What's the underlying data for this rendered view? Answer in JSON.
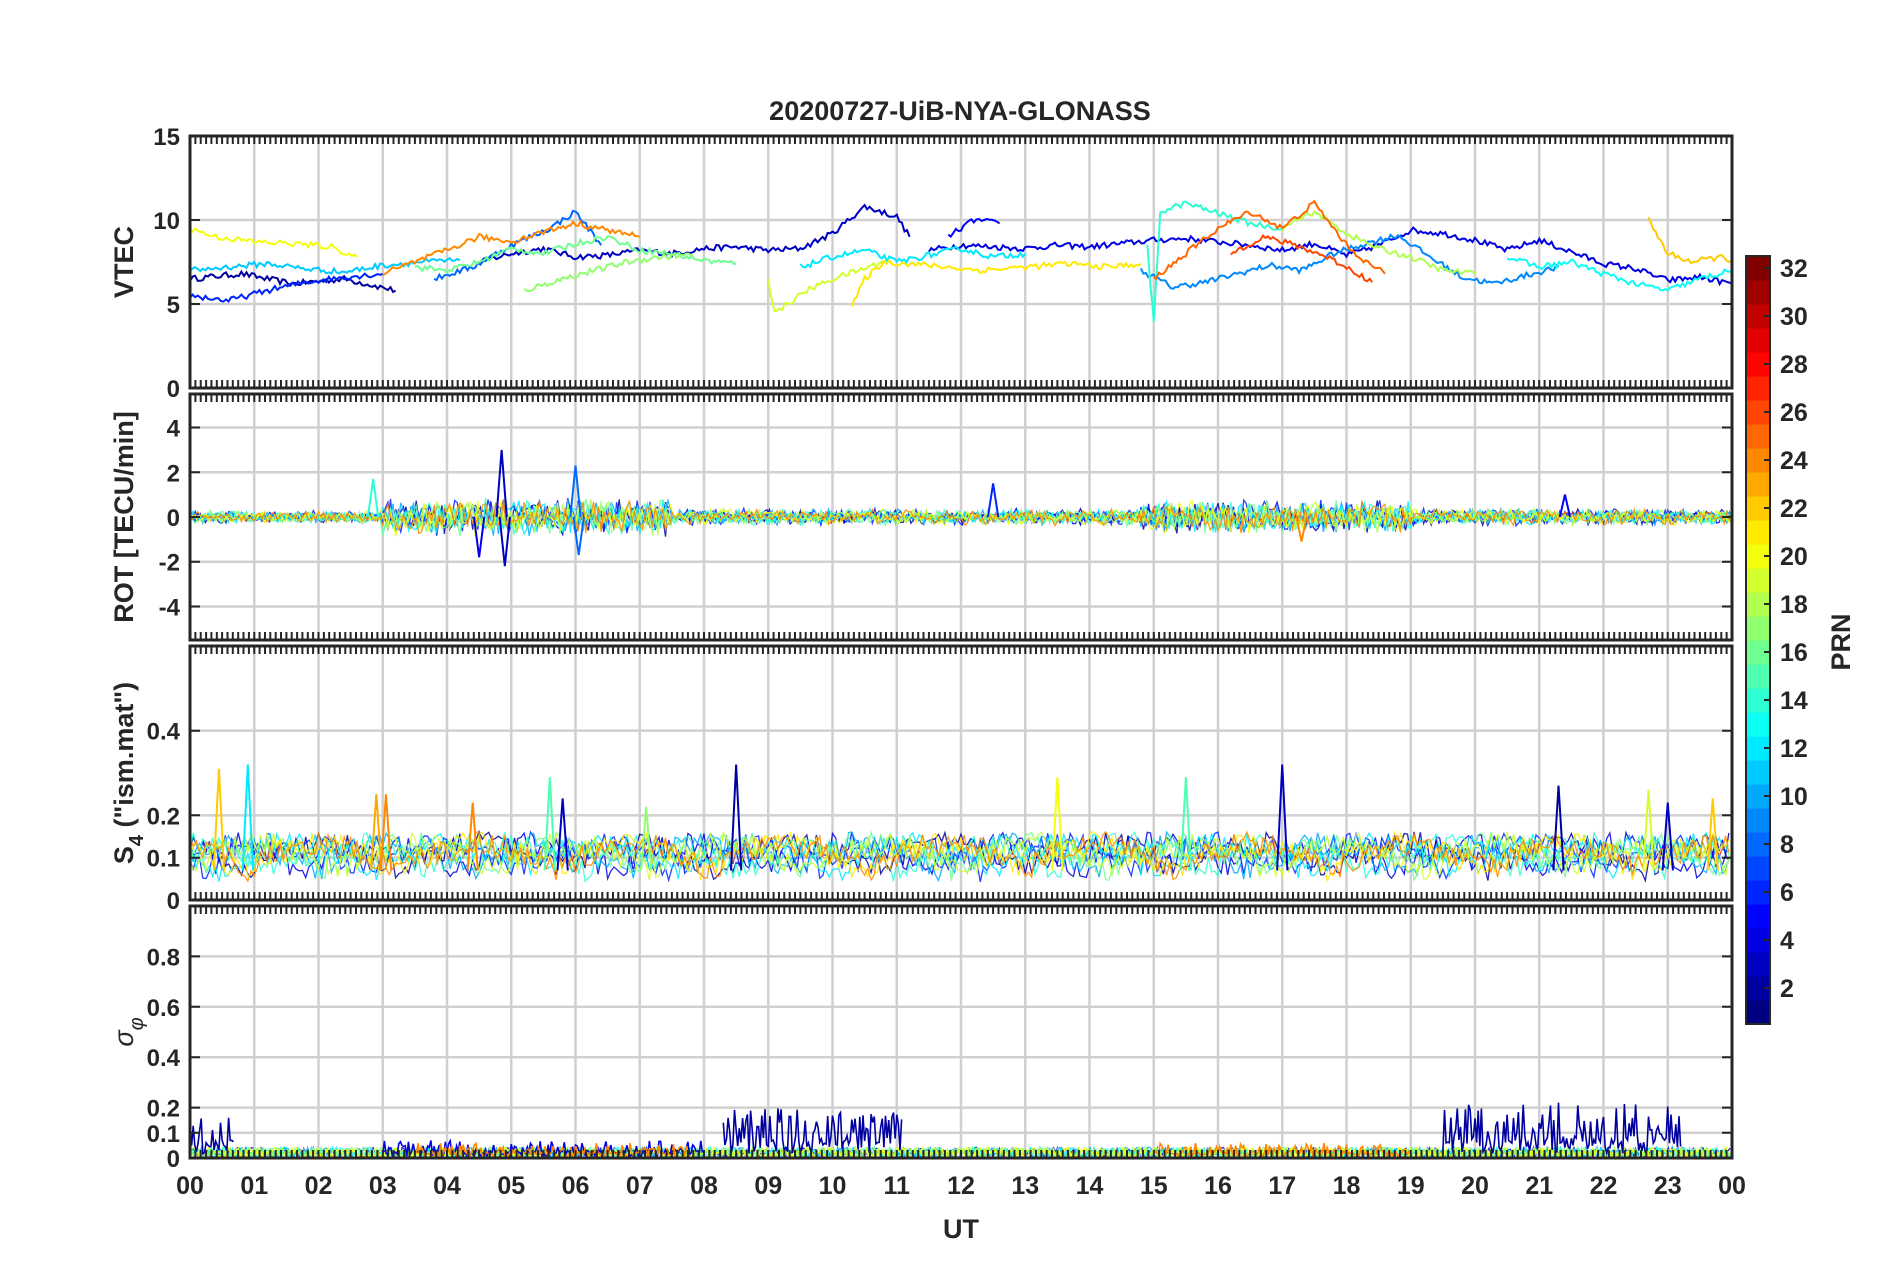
{
  "chart_data": {
    "type": "line",
    "title": "20200727-UiB-NYA-GLONASS",
    "xlabel": "UT",
    "x_range_hours": [
      0,
      24
    ],
    "x_tick_labels": [
      "00",
      "01",
      "02",
      "03",
      "04",
      "05",
      "06",
      "07",
      "08",
      "09",
      "10",
      "11",
      "12",
      "13",
      "14",
      "15",
      "16",
      "17",
      "18",
      "19",
      "20",
      "21",
      "22",
      "23",
      "00"
    ],
    "grid": true,
    "colorbar": {
      "label": "PRN",
      "range": [
        1,
        32
      ],
      "tick_labels": [
        "2",
        "4",
        "6",
        "8",
        "10",
        "12",
        "14",
        "16",
        "18",
        "20",
        "22",
        "24",
        "26",
        "28",
        "30",
        "32"
      ],
      "colormap": "jet"
    },
    "panels": [
      {
        "id": "vtec",
        "ylabel": "VTEC",
        "ylim": [
          0,
          15
        ],
        "y_ticks": [
          "0",
          "5",
          "10",
          "15"
        ],
        "series": [
          {
            "prn": 2,
            "x": [
              0.0,
              0.8,
              1.6,
              2.4,
              3.2
            ],
            "y": [
              6.5,
              6.8,
              6.2,
              6.5,
              5.8
            ]
          },
          {
            "prn": 3,
            "x": [
              4.5,
              5.0,
              5.5,
              6.0,
              6.5,
              7.0,
              7.5,
              8.0,
              8.5,
              9.0,
              9.5,
              10.0,
              10.5,
              11.0,
              11.2
            ],
            "y": [
              7.5,
              8.0,
              8.3,
              7.8,
              7.9,
              8.2,
              8.0,
              8.3,
              8.4,
              8.2,
              8.3,
              9.2,
              10.8,
              10.2,
              9.0
            ]
          },
          {
            "prn": 4,
            "x": [
              11.5,
              12.0,
              12.5,
              13.0,
              13.5,
              14.0,
              14.5,
              15.0,
              15.5,
              16.0,
              16.5,
              17.0,
              17.5,
              18.0,
              18.5,
              19.0,
              19.5,
              20.0,
              20.5,
              21.0,
              21.5,
              22.0,
              22.5,
              23.0,
              23.5,
              24.0
            ],
            "y": [
              8.2,
              8.5,
              8.4,
              8.3,
              8.5,
              8.4,
              8.6,
              8.8,
              8.9,
              8.7,
              8.5,
              8.2,
              8.6,
              7.9,
              8.5,
              9.4,
              9.2,
              8.8,
              8.2,
              8.8,
              8.1,
              7.4,
              7.1,
              6.4,
              6.6,
              6.2
            ]
          },
          {
            "prn": 5,
            "x": [
              11.8,
              12.2,
              12.6
            ],
            "y": [
              9.0,
              10.0,
              9.8
            ]
          },
          {
            "prn": 6,
            "x": [
              0.0,
              0.6,
              1.2,
              1.8,
              2.4,
              3.0
            ],
            "y": [
              5.5,
              5.2,
              5.8,
              6.3,
              6.6,
              6.8
            ]
          },
          {
            "prn": 8,
            "x": [
              3.8,
              4.4,
              5.0,
              5.6,
              6.0,
              6.4
            ],
            "y": [
              6.5,
              7.2,
              8.5,
              9.5,
              10.5,
              8.5
            ]
          },
          {
            "prn": 9,
            "x": [
              14.8,
              15.3,
              15.8,
              16.3,
              16.8,
              17.3,
              17.8,
              18.3,
              18.8,
              19.3,
              19.8,
              20.3,
              20.8,
              21.3
            ],
            "y": [
              7.0,
              6.0,
              6.3,
              6.8,
              7.3,
              7.0,
              8.0,
              8.6,
              9.1,
              7.8,
              6.6,
              6.2,
              6.7,
              7.2
            ]
          },
          {
            "prn": 11,
            "x": [
              0.0,
              0.6,
              1.2,
              1.8,
              2.4,
              3.0,
              3.6,
              4.2
            ],
            "y": [
              7.0,
              7.2,
              7.4,
              7.1,
              6.9,
              7.3,
              7.5,
              7.6
            ]
          },
          {
            "prn": 12,
            "x": [
              9.5,
              10.0,
              10.5,
              11.0,
              11.5,
              12.0,
              12.5,
              13.0
            ],
            "y": [
              7.2,
              7.8,
              8.2,
              7.5,
              7.9,
              8.3,
              7.8,
              8.0
            ]
          },
          {
            "prn": 13,
            "x": [
              20.5,
              21.0,
              21.5,
              22.0,
              22.5,
              23.0,
              23.5,
              24.0
            ],
            "y": [
              7.8,
              7.2,
              7.5,
              6.8,
              6.2,
              5.8,
              6.5,
              7.0
            ]
          },
          {
            "prn": 14,
            "x": [
              14.9,
              15.0,
              15.1,
              15.5,
              16.0,
              16.5,
              17.0
            ],
            "y": [
              8.5,
              3.8,
              10.5,
              11.0,
              10.4,
              9.8,
              9.5
            ]
          },
          {
            "prn": 16,
            "x": [
              3.5,
              4.0,
              4.5,
              5.0,
              5.5,
              6.0,
              6.5,
              7.0,
              7.5,
              8.0,
              8.5
            ],
            "y": [
              7.2,
              7.0,
              7.5,
              8.3,
              8.0,
              8.6,
              9.0,
              8.2,
              8.0,
              7.6,
              7.4
            ]
          },
          {
            "prn": 17,
            "x": [
              5.2,
              5.8,
              6.3,
              6.8,
              7.3,
              7.8
            ],
            "y": [
              5.8,
              6.5,
              7.0,
              7.5,
              7.8,
              7.9
            ]
          },
          {
            "prn": 18,
            "x": [
              17.0,
              17.5,
              18.0,
              18.5,
              19.0,
              19.5,
              20.0
            ],
            "y": [
              9.5,
              10.5,
              9.2,
              8.3,
              7.8,
              7.0,
              6.8
            ]
          },
          {
            "prn": 19,
            "x": [
              9.0,
              9.1,
              9.3,
              9.6,
              10.0,
              10.4,
              10.8
            ],
            "y": [
              6.5,
              4.5,
              5.0,
              5.8,
              6.5,
              7.0,
              7.5
            ]
          },
          {
            "prn": 20,
            "x": [
              0.0,
              0.4,
              1.0,
              1.6,
              2.2,
              2.6
            ],
            "y": [
              9.5,
              9.0,
              8.7,
              8.6,
              8.4,
              7.8
            ]
          },
          {
            "prn": 21,
            "x": [
              10.3,
              10.5,
              10.8,
              11.5,
              12.3,
              13.0,
              13.7,
              14.3,
              14.8
            ],
            "y": [
              4.8,
              6.5,
              7.5,
              7.3,
              7.0,
              7.2,
              7.4,
              7.2,
              7.4
            ]
          },
          {
            "prn": 22,
            "x": [
              22.7,
              23.0,
              23.4,
              23.8,
              24.0
            ],
            "y": [
              10.0,
              8.0,
              7.5,
              7.8,
              7.6
            ]
          },
          {
            "prn": 24,
            "x": [
              3.0,
              3.5,
              4.0,
              4.5,
              5.0,
              5.5,
              6.0,
              6.5,
              7.0
            ],
            "y": [
              6.8,
              7.5,
              8.2,
              9.0,
              8.7,
              9.3,
              9.8,
              9.4,
              9.0
            ]
          },
          {
            "prn": 25,
            "x": [
              15.0,
              15.5,
              16.0,
              16.5,
              17.0,
              17.5,
              18.0,
              18.3,
              18.6
            ],
            "y": [
              6.5,
              8.0,
              9.5,
              10.5,
              9.5,
              11.0,
              8.5,
              7.5,
              6.8
            ]
          },
          {
            "prn": 26,
            "x": [
              16.2,
              16.7,
              17.2,
              17.7,
              18.0,
              18.4
            ],
            "y": [
              8.0,
              9.0,
              8.5,
              7.8,
              7.2,
              6.3
            ]
          }
        ]
      },
      {
        "id": "rot",
        "ylabel": "ROT [TECU/min]",
        "ylim": [
          -5.5,
          5.5
        ],
        "y_ticks": [
          "-4",
          "-2",
          "0",
          "2",
          "4"
        ],
        "spikes": [
          {
            "prn": 3,
            "x": 4.85,
            "y": 3.0
          },
          {
            "prn": 3,
            "x": 4.9,
            "y": -2.2
          },
          {
            "prn": 8,
            "x": 6.0,
            "y": 2.3
          },
          {
            "prn": 8,
            "x": 6.05,
            "y": -1.7
          },
          {
            "prn": 6,
            "x": 12.5,
            "y": 1.5
          },
          {
            "prn": 14,
            "x": 2.85,
            "y": 1.7
          },
          {
            "prn": 4,
            "x": 4.5,
            "y": -1.8
          },
          {
            "prn": 24,
            "x": 17.3,
            "y": -1.1
          },
          {
            "prn": 5,
            "x": 21.4,
            "y": 1.0
          }
        ],
        "noise_bands": [
          {
            "x": [
              0.0,
              3.0
            ],
            "amp": 0.3
          },
          {
            "x": [
              3.0,
              7.5
            ],
            "amp": 0.9
          },
          {
            "x": [
              7.5,
              14.8
            ],
            "amp": 0.4
          },
          {
            "x": [
              14.8,
              19.0
            ],
            "amp": 0.8
          },
          {
            "x": [
              19.0,
              24.0
            ],
            "amp": 0.4
          }
        ]
      },
      {
        "id": "s4",
        "ylabel": "S_4 (\"ism.mat\")",
        "ylabel_main": "S",
        "ylabel_sub": "4",
        "ylabel_rest": " (\"ism.mat\")",
        "ylim": [
          0,
          0.6
        ],
        "y_ticks": [
          "0",
          "0.1",
          "0.2",
          "0.4"
        ],
        "spikes": [
          {
            "prn": 2,
            "x": 8.5,
            "y": 0.32
          },
          {
            "prn": 12,
            "x": 0.9,
            "y": 0.32
          },
          {
            "prn": 22,
            "x": 0.45,
            "y": 0.31
          },
          {
            "prn": 23,
            "x": 2.9,
            "y": 0.25
          },
          {
            "prn": 24,
            "x": 3.05,
            "y": 0.25
          },
          {
            "prn": 24,
            "x": 4.4,
            "y": 0.23
          },
          {
            "prn": 15,
            "x": 5.6,
            "y": 0.29
          },
          {
            "prn": 3,
            "x": 5.8,
            "y": 0.24
          },
          {
            "prn": 17,
            "x": 7.1,
            "y": 0.22
          },
          {
            "prn": 20,
            "x": 13.5,
            "y": 0.29
          },
          {
            "prn": 15,
            "x": 15.5,
            "y": 0.29
          },
          {
            "prn": 3,
            "x": 17.0,
            "y": 0.32
          },
          {
            "prn": 2,
            "x": 21.3,
            "y": 0.27
          },
          {
            "prn": 19,
            "x": 22.7,
            "y": 0.26
          },
          {
            "prn": 3,
            "x": 23.0,
            "y": 0.23
          },
          {
            "prn": 22,
            "x": 23.7,
            "y": 0.24
          }
        ],
        "baseline": 0.06
      },
      {
        "id": "sigma_phi",
        "ylabel": "σ_φ",
        "ylabel_main": "σ",
        "ylabel_sub": "φ",
        "ylim": [
          0,
          1.0
        ],
        "y_ticks": [
          "0",
          "0.1",
          "0.2",
          "0.4",
          "0.6",
          "0.8"
        ],
        "bursts": [
          {
            "prn": 2,
            "x": [
              0.0,
              0.7
            ],
            "amp": 0.18
          },
          {
            "prn": 2,
            "x": [
              8.3,
              11.1
            ],
            "amp": 0.2
          },
          {
            "prn": 2,
            "x": [
              19.5,
              23.2
            ],
            "amp": 0.22
          },
          {
            "prn": 4,
            "x": [
              3.0,
              8.0
            ],
            "amp": 0.07
          },
          {
            "prn": 24,
            "x": [
              3.5,
              7.8
            ],
            "amp": 0.06
          },
          {
            "prn": 24,
            "x": [
              15.0,
              19.0
            ],
            "amp": 0.06
          }
        ],
        "baseline": 0.03
      }
    ]
  }
}
